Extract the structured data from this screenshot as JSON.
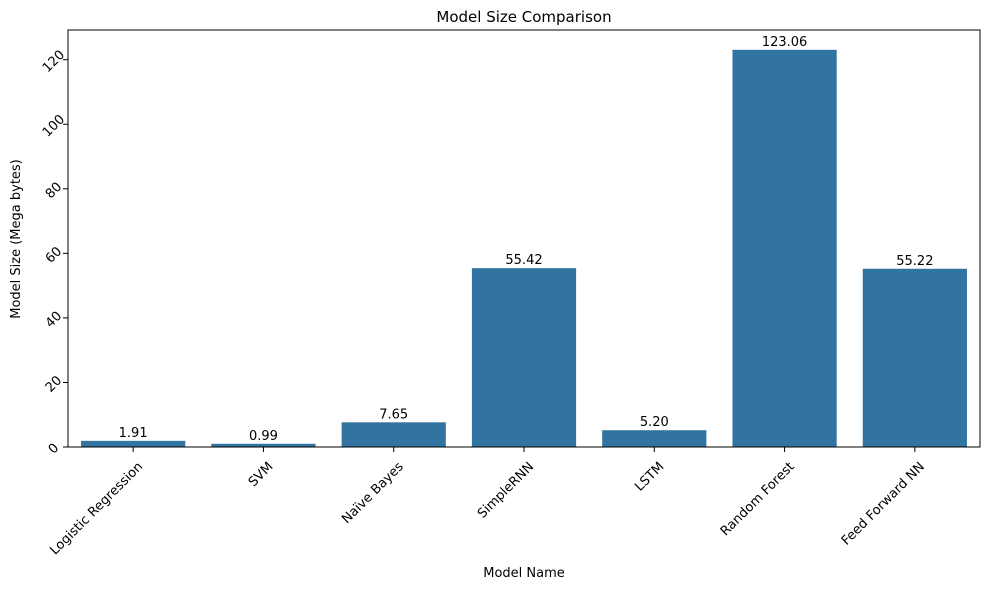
{
  "chart_data": {
    "type": "bar",
    "title": "Model Size Comparison",
    "xlabel": "Model Name",
    "ylabel": "Model Size (Mega bytes)",
    "categories": [
      "Logistic Regression",
      "SVM",
      "Naïve Bayes",
      "SimpleRNN",
      "LSTM",
      "Random Forest",
      "Feed Forward NN"
    ],
    "values": [
      1.91,
      0.99,
      7.65,
      55.42,
      5.2,
      123.06,
      55.22
    ],
    "value_labels": [
      "1.91",
      "0.99",
      "7.65",
      "55.42",
      "5.20",
      "123.06",
      "55.22"
    ],
    "yticks": [
      0,
      20,
      40,
      60,
      80,
      100,
      120
    ],
    "ylim": [
      0,
      129.2
    ],
    "grid": false,
    "bar_color": "#3274a1",
    "tick_label_rotation_deg": 45
  }
}
